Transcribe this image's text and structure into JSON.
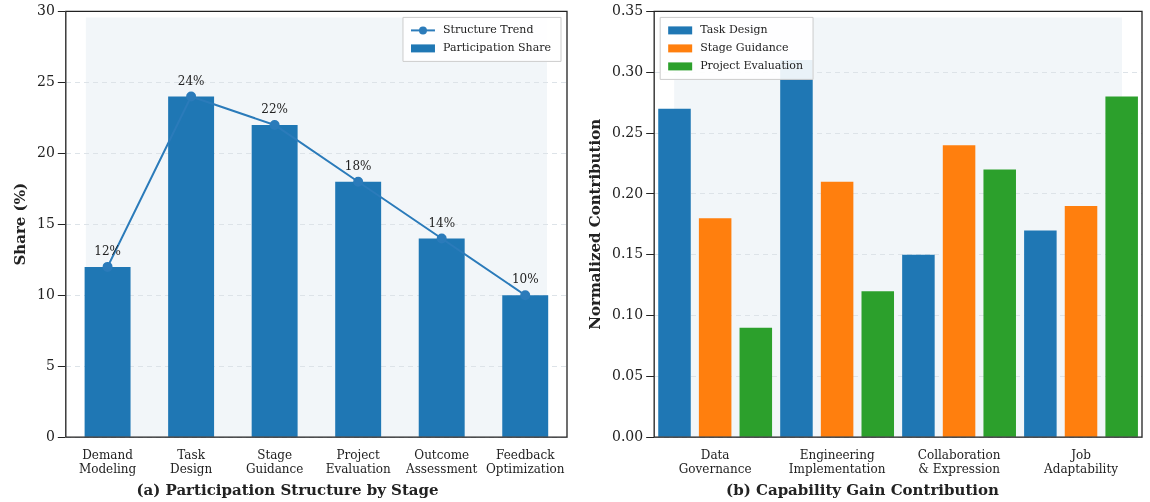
{
  "chart_data": [
    {
      "type": "bar",
      "title": "(a) Participation Structure by Stage",
      "ylabel": "Share (%)",
      "categories": [
        "Demand Modeling",
        "Task Design",
        "Stage Guidance",
        "Project Evaluation",
        "Outcome Assessment",
        "Feedback Optimization"
      ],
      "series": [
        {
          "type": "line",
          "name": "Structure Trend",
          "color": "#2b7bba",
          "values": [
            12,
            24,
            22,
            18,
            14,
            10
          ],
          "value_labels": [
            "12%",
            "24%",
            "22%",
            "18%",
            "14%",
            "10%"
          ]
        },
        {
          "name": "Participation Share",
          "color": "#1f77b4",
          "values": [
            12,
            24,
            22,
            18,
            14,
            10
          ]
        }
      ],
      "ylim": [
        0,
        30
      ],
      "yticks": [
        0,
        5,
        10,
        15,
        20,
        25,
        30
      ],
      "grid": "y",
      "legend": "top right",
      "marker": "circle"
    },
    {
      "type": "bar",
      "title": "(b) Capability Gain Contribution",
      "ylabel": "Normalized Contribution",
      "categories": [
        "Data Governance",
        "Engineering Implementation",
        "Collaboration & Expression",
        "Job Adaptability"
      ],
      "series": [
        {
          "name": "Task Design",
          "color": "#1f77b4",
          "values": [
            0.27,
            0.31,
            0.15,
            0.17
          ]
        },
        {
          "name": "Stage Guidance",
          "color": "#ff7f0e",
          "values": [
            0.18,
            0.21,
            0.24,
            0.19
          ]
        },
        {
          "name": "Project Evaluation",
          "color": "#2ca02c",
          "values": [
            0.09,
            0.12,
            0.22,
            0.28
          ]
        }
      ],
      "ylim": [
        0,
        0.35
      ],
      "yticks": [
        {
          "value": 0,
          "label": "0.00"
        },
        0.05,
        {
          "value": 0.1,
          "label": "0.10"
        },
        0.15,
        {
          "value": 0.2,
          "label": "0.20"
        },
        0.25,
        {
          "value": 0.3,
          "label": "0.30"
        },
        0.35
      ],
      "grid": "y",
      "legend": "top left"
    }
  ]
}
